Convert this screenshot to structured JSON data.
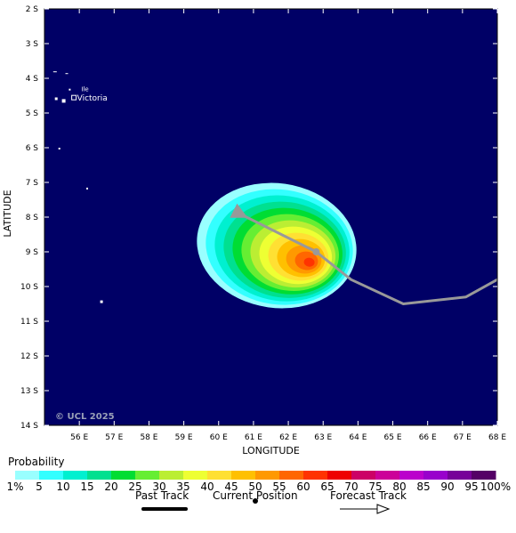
{
  "colors": {
    "sea": "#000066",
    "frame": "#000000",
    "track": "#999999",
    "grid": "#ffffff"
  },
  "axes": {
    "ylabel": "LATITUDE",
    "xlabel": "LONGITUDE",
    "lat_ticks": [
      "2 S",
      "3 S",
      "4 S",
      "5 S",
      "6 S",
      "7 S",
      "8 S",
      "9 S",
      "10 S",
      "11 S",
      "12 S",
      "13 S",
      "14 S"
    ],
    "lon_ticks": [
      "56 E",
      "57 E",
      "58 E",
      "59 E",
      "60 E",
      "61 E",
      "62 E",
      "63 E",
      "64 E",
      "65 E",
      "66 E",
      "67 E",
      "68 E"
    ],
    "lat_range": [
      -14,
      -2
    ],
    "lon_range": [
      55,
      68
    ]
  },
  "places": [
    {
      "name": "Victoria",
      "lon": 55.45,
      "lat": -4.62
    },
    {
      "name": "Ile",
      "lon": 55.7,
      "lat": -4.35
    }
  ],
  "copyright": "© UCL 2025",
  "storm": {
    "current_position": {
      "lon": 62.8,
      "lat": -9.0
    },
    "forecast_track": [
      {
        "lon": 62.8,
        "lat": -9.0
      },
      {
        "lon": 63.8,
        "lat": -9.8
      },
      {
        "lon": 65.3,
        "lat": -10.5
      },
      {
        "lon": 67.1,
        "lat": -10.3
      },
      {
        "lon": 68.0,
        "lat": -9.8
      }
    ],
    "past_track": [
      {
        "lon": 62.8,
        "lat": -9.0
      },
      {
        "lon": 60.6,
        "lat": -7.9
      }
    ],
    "probability_peak": {
      "lon": 62.6,
      "lat": -9.3
    },
    "probability_max_pct": 65
  },
  "legend": {
    "title": "Probability",
    "values": [
      "1%",
      "5",
      "10",
      "15",
      "20",
      "25",
      "30",
      "35",
      "40",
      "45",
      "50",
      "55",
      "60",
      "65",
      "70",
      "75",
      "80",
      "85",
      "90",
      "95",
      "100%"
    ],
    "colors": [
      "#99ffff",
      "#33ffff",
      "#00f0d0",
      "#00e090",
      "#00dd33",
      "#66ee33",
      "#bbee33",
      "#eeff33",
      "#ffe033",
      "#ffc000",
      "#ff9900",
      "#ff6600",
      "#ff3300",
      "#ee0000",
      "#cc0066",
      "#cc0099",
      "#bb00cc",
      "#9900cc",
      "#770099",
      "#550066"
    ],
    "past_track_label": "Past Track",
    "current_position_label": "Current Position",
    "forecast_track_label": "Forecast Track"
  }
}
